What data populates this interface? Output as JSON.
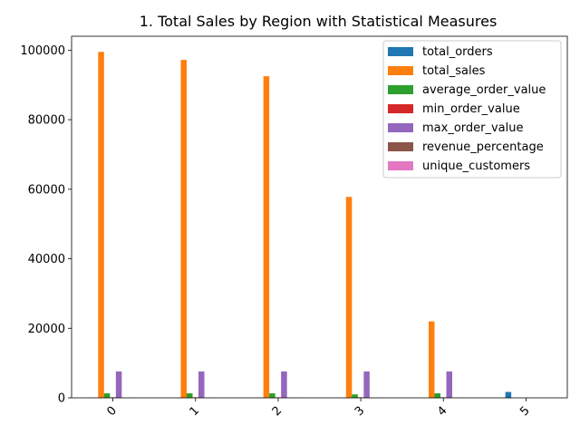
{
  "chart_data": {
    "type": "bar",
    "title": "1. Total Sales by Region with Statistical Measures",
    "xlabel": "",
    "ylabel": "",
    "categories": [
      "0",
      "1",
      "2",
      "3",
      "4",
      "5"
    ],
    "ylim": [
      0,
      104000
    ],
    "yticks": [
      0,
      20000,
      40000,
      60000,
      80000,
      100000
    ],
    "grid": false,
    "legend_position": "top-right",
    "series": [
      {
        "name": "total_orders",
        "color": "#1f77b4",
        "values": [
          50,
          48,
          46,
          29,
          11,
          1700
        ]
      },
      {
        "name": "total_sales",
        "color": "#ff7f0e",
        "values": [
          99500,
          97200,
          92500,
          57800,
          22000,
          0
        ]
      },
      {
        "name": "average_order_value",
        "color": "#2ca02c",
        "values": [
          1300,
          1300,
          1300,
          1000,
          1300,
          0
        ]
      },
      {
        "name": "min_order_value",
        "color": "#d62728",
        "values": [
          150,
          150,
          150,
          150,
          150,
          0
        ]
      },
      {
        "name": "max_order_value",
        "color": "#9467bd",
        "values": [
          7600,
          7600,
          7600,
          7600,
          7600,
          0
        ]
      },
      {
        "name": "revenue_percentage",
        "color": "#8c564b",
        "values": [
          27,
          27,
          25,
          16,
          6,
          0
        ]
      },
      {
        "name": "unique_customers",
        "color": "#e377c2",
        "values": [
          50,
          48,
          46,
          29,
          11,
          0
        ]
      }
    ]
  }
}
